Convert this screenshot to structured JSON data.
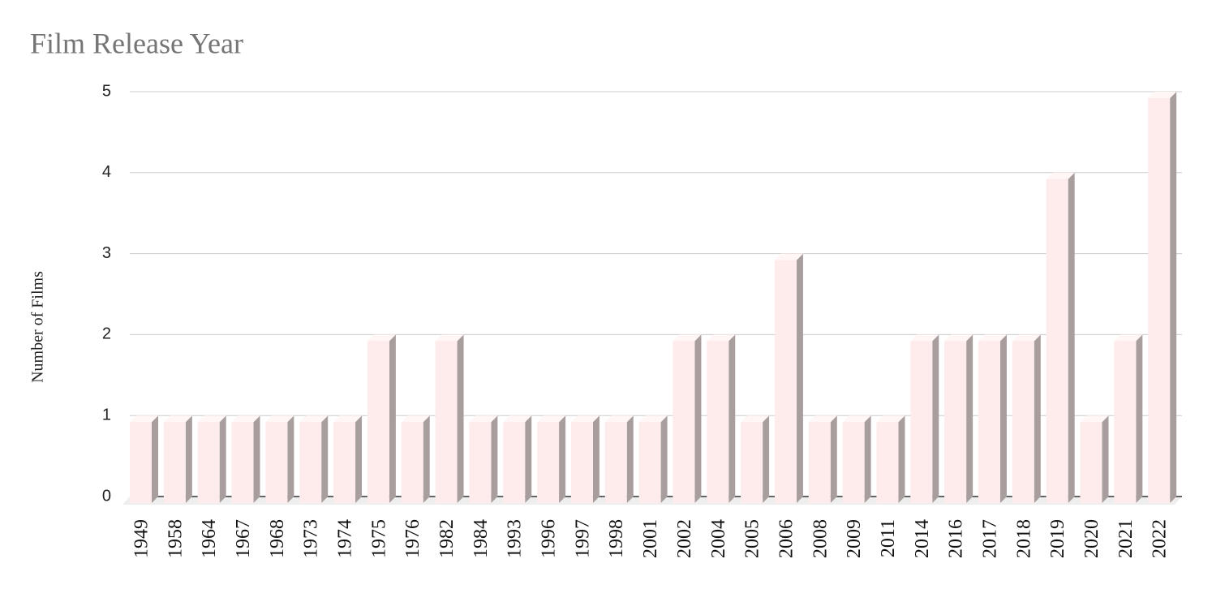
{
  "chart_data": {
    "type": "bar",
    "title": "Film Release Year",
    "y_label": "Number of Films",
    "categories": [
      "1949",
      "1958",
      "1964",
      "1967",
      "1968",
      "1973",
      "1974",
      "1975",
      "1976",
      "1982",
      "1984",
      "1993",
      "1996",
      "1997",
      "1998",
      "2001",
      "2002",
      "2004",
      "2005",
      "2006",
      "2008",
      "2009",
      "2011",
      "2014",
      "2016",
      "2017",
      "2018",
      "2019",
      "2020",
      "2021",
      "2022"
    ],
    "values": [
      1,
      1,
      1,
      1,
      1,
      1,
      1,
      2,
      1,
      2,
      1,
      1,
      1,
      1,
      1,
      1,
      2,
      2,
      1,
      3,
      1,
      1,
      1,
      2,
      2,
      2,
      2,
      4,
      1,
      2,
      5
    ],
    "color": "#fdeceb",
    "ylim": [
      0,
      5
    ],
    "yticks": [
      0,
      1,
      2,
      3,
      4,
      5
    ],
    "grid": true
  }
}
